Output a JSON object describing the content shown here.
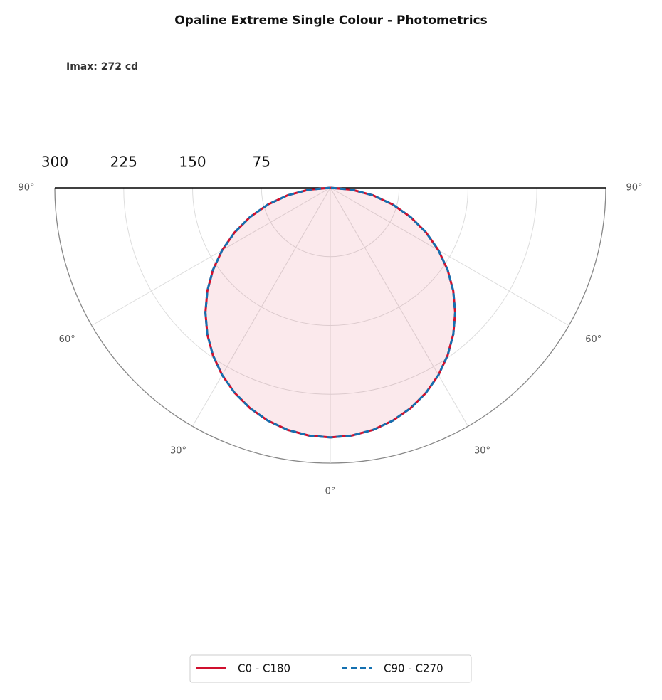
{
  "chart_data": {
    "type": "polar",
    "title": "Opaline Extreme Single Colour - Photometrics",
    "subtitle": "Imax: 272 cd",
    "angles": [
      -90,
      -85,
      -80,
      -75,
      -70,
      -65,
      -60,
      -55,
      -50,
      -45,
      -40,
      -35,
      -30,
      -25,
      -20,
      -15,
      -10,
      -5,
      0,
      5,
      10,
      15,
      20,
      25,
      30,
      35,
      40,
      45,
      50,
      55,
      60,
      65,
      70,
      75,
      80,
      85,
      90
    ],
    "series": [
      {
        "name": "C0 - C180",
        "color": "#d0102e",
        "dash": false,
        "fill": true,
        "values": [
          0,
          23.7,
          47.2,
          70.4,
          93.0,
          115.0,
          136.0,
          156.0,
          174.8,
          192.3,
          208.4,
          222.8,
          235.6,
          246.5,
          255.6,
          262.7,
          267.9,
          271.0,
          272,
          271.0,
          267.9,
          262.7,
          255.6,
          246.5,
          235.6,
          222.8,
          208.4,
          192.3,
          174.8,
          156.0,
          136.0,
          115.0,
          93.0,
          70.4,
          47.2,
          23.7,
          0
        ]
      },
      {
        "name": "C90 - C270",
        "color": "#1470b0",
        "dash": true,
        "fill": false,
        "values": [
          0,
          23.7,
          47.2,
          70.4,
          93.0,
          115.0,
          136.0,
          156.0,
          174.8,
          192.3,
          208.4,
          222.8,
          235.6,
          246.5,
          255.6,
          262.7,
          267.9,
          271.0,
          272,
          271.0,
          267.9,
          262.7,
          255.6,
          246.5,
          235.6,
          222.8,
          208.4,
          192.3,
          174.8,
          156.0,
          136.0,
          115.0,
          93.0,
          70.4,
          47.2,
          23.7,
          0
        ]
      }
    ],
    "rlim": [
      0,
      300
    ],
    "rticks": [
      75,
      150,
      225,
      300
    ],
    "angle_ticks": [
      {
        "value": 0,
        "label": "0°"
      },
      {
        "value": 30,
        "label": "30°"
      },
      {
        "value": 60,
        "label": "60°"
      },
      {
        "value": 90,
        "label": "90°"
      }
    ],
    "grid": true
  }
}
